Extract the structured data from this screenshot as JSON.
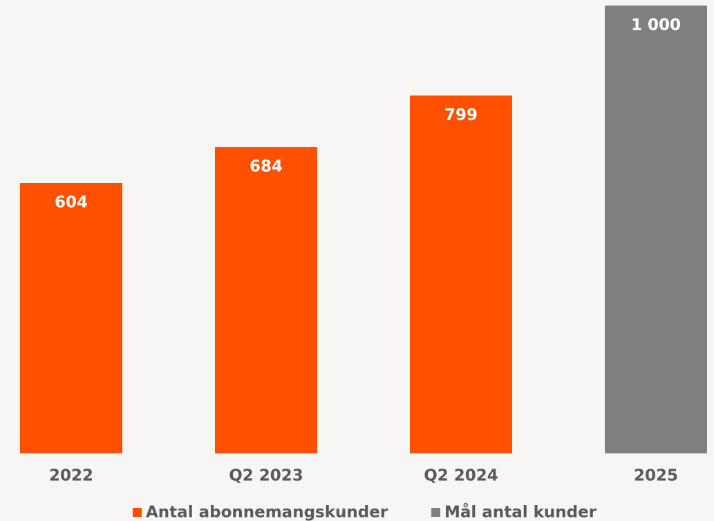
{
  "chart_data": {
    "type": "bar",
    "categories": [
      "2022",
      "Q2 2023",
      "Q2 2024",
      "2025"
    ],
    "series": [
      {
        "name": "Antal abonnemangskunder",
        "color": "#ff5000",
        "values": [
          604,
          684,
          799,
          null
        ]
      },
      {
        "name": "Mål antal kunder",
        "color": "#808080",
        "values": [
          null,
          null,
          null,
          1000
        ],
        "value_labels": [
          null,
          null,
          null,
          "1 000"
        ]
      }
    ]
  }
}
